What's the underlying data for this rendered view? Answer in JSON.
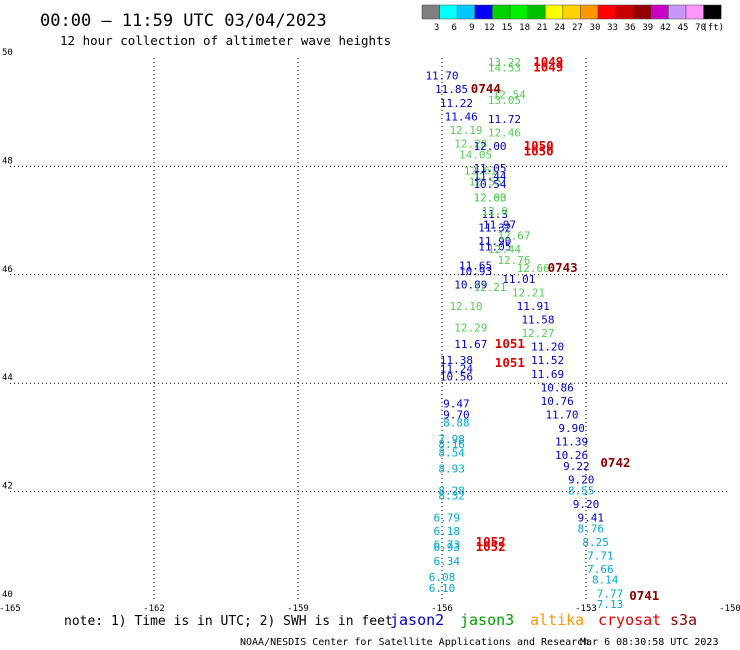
{
  "title": "00:00 – 11:59 UTC 03/04/2023",
  "subtitle": "12 hour collection of altimeter wave heights",
  "colorbar": {
    "colors": [
      "#7f7f7f",
      "#00ffff",
      "#00c8ff",
      "#0000ff",
      "#00d200",
      "#00f000",
      "#00c000",
      "#ffff00",
      "#ffd200",
      "#ff9600",
      "#ff0000",
      "#c80000",
      "#960000",
      "#c800c8",
      "#c896ff",
      "#ff96ff",
      "#000000"
    ],
    "labels": [
      "3",
      "6",
      "9",
      "12",
      "15",
      "18",
      "21",
      "24",
      "27",
      "30",
      "33",
      "36",
      "39",
      "42",
      "45",
      "70",
      "(ft)"
    ]
  },
  "axes": {
    "x_ticks": [
      "-165",
      "-162",
      "-159",
      "-156",
      "-153",
      "-150"
    ],
    "y_ticks": [
      "40",
      "42",
      "44",
      "46",
      "48",
      "50"
    ]
  },
  "note": "note: 1) Time is in UTC; 2) SWH is in feet",
  "satellites": [
    {
      "name": "jason2",
      "color": "#0000c8"
    },
    {
      "name": "jason3",
      "color": "#00a000"
    },
    {
      "name": "altika",
      "color": "#ff9900"
    },
    {
      "name": "cryosat",
      "color": "#e00000"
    },
    {
      "name": "s3a",
      "color": "#8b0000"
    }
  ],
  "credit": "NOAA/NESDIS Center for Satellite Applications and Research",
  "generated": "Mar  6 08:30:58 UTC 2023",
  "chart_data": {
    "type": "scatter",
    "x_range": [
      -165,
      -150
    ],
    "y_range": [
      40,
      50
    ],
    "grid": true,
    "observations": [
      {
        "lon": -156.0,
        "lat": 49.6,
        "v": "11.70",
        "color": "#0000c8"
      },
      {
        "lon": -155.8,
        "lat": 49.35,
        "v": "11.85",
        "color": "#0000c8"
      },
      {
        "lon": -155.7,
        "lat": 49.1,
        "v": "11.22",
        "color": "#0000c8"
      },
      {
        "lon": -155.6,
        "lat": 48.85,
        "v": "11.46",
        "color": "#0000c8"
      },
      {
        "lon": -155.5,
        "lat": 48.6,
        "v": "12.19",
        "color": "#55cc55"
      },
      {
        "lon": -155.4,
        "lat": 48.35,
        "v": "12.28",
        "color": "#55cc55"
      },
      {
        "lon": -155.3,
        "lat": 48.15,
        "v": "14.05",
        "color": "#55cc55"
      },
      {
        "lon": -155.2,
        "lat": 47.85,
        "v": "12.61",
        "color": "#55cc55"
      },
      {
        "lon": -155.1,
        "lat": 47.65,
        "v": "12.55",
        "color": "#55cc55"
      },
      {
        "lon": -155.0,
        "lat": 47.35,
        "v": "12.63",
        "color": "#55cc55"
      },
      {
        "lon": -154.9,
        "lat": 47.05,
        "v": "11.3",
        "color": "#0000c8"
      },
      {
        "lon": -154.9,
        "lat": 46.8,
        "v": "11.32",
        "color": "#0000c8"
      },
      {
        "lon": -154.9,
        "lat": 46.55,
        "v": "11.90",
        "color": "#0000c8"
      },
      {
        "lon": -154.9,
        "lat": 46.45,
        "v": "11.05",
        "color": "#0000c8"
      },
      {
        "lon": -155.3,
        "lat": 46.1,
        "v": "11.65",
        "color": "#0000c8"
      },
      {
        "lon": -155.3,
        "lat": 46.0,
        "v": "10.93",
        "color": "#0000c8"
      },
      {
        "lon": -155.4,
        "lat": 45.75,
        "v": "10.89",
        "color": "#0000c8"
      },
      {
        "lon": -155.5,
        "lat": 45.35,
        "v": "12.10",
        "color": "#55cc55"
      },
      {
        "lon": -155.4,
        "lat": 44.95,
        "v": "12.29",
        "color": "#55cc55"
      },
      {
        "lon": -155.4,
        "lat": 44.65,
        "v": "11.67",
        "color": "#0000c8"
      },
      {
        "lon": -155.7,
        "lat": 44.35,
        "v": "11.38",
        "color": "#0000c8"
      },
      {
        "lon": -155.7,
        "lat": 44.2,
        "v": "11.24",
        "color": "#0000c8"
      },
      {
        "lon": -155.7,
        "lat": 44.05,
        "v": "10.56",
        "color": "#0000c8"
      },
      {
        "lon": -155.7,
        "lat": 43.55,
        "v": "9.47",
        "color": "#0000c8"
      },
      {
        "lon": -155.7,
        "lat": 43.35,
        "v": "9.70",
        "color": "#0000c8"
      },
      {
        "lon": -155.7,
        "lat": 43.2,
        "v": "8.88",
        "color": "#00a8d0"
      },
      {
        "lon": -155.8,
        "lat": 42.9,
        "v": "7.98",
        "color": "#00a8d0"
      },
      {
        "lon": -155.8,
        "lat": 42.8,
        "v": "8.16",
        "color": "#00a8d0"
      },
      {
        "lon": -155.8,
        "lat": 42.65,
        "v": "8.54",
        "color": "#00a8d0"
      },
      {
        "lon": -155.8,
        "lat": 42.35,
        "v": "8.93",
        "color": "#00a8d0"
      },
      {
        "lon": -155.8,
        "lat": 41.95,
        "v": "8.28",
        "color": "#00a8d0"
      },
      {
        "lon": -155.8,
        "lat": 41.85,
        "v": "8.32",
        "color": "#00a8d0"
      },
      {
        "lon": -155.9,
        "lat": 41.45,
        "v": "6.79",
        "color": "#00a8d0"
      },
      {
        "lon": -155.9,
        "lat": 41.2,
        "v": "6.18",
        "color": "#00a8d0"
      },
      {
        "lon": -155.9,
        "lat": 40.95,
        "v": "6.73",
        "color": "#00a8d0"
      },
      {
        "lon": -155.9,
        "lat": 40.9,
        "v": "6.93",
        "color": "#00a8d0"
      },
      {
        "lon": -155.9,
        "lat": 40.65,
        "v": "6.34",
        "color": "#00a8d0"
      },
      {
        "lon": -156.0,
        "lat": 40.35,
        "v": "6.08",
        "color": "#00a8d0"
      },
      {
        "lon": -156.0,
        "lat": 40.15,
        "v": "6.10",
        "color": "#00a8d0"
      },
      {
        "lon": -154.7,
        "lat": 49.85,
        "v": "13.22",
        "color": "#55cc55"
      },
      {
        "lon": -154.7,
        "lat": 49.75,
        "v": "14.53",
        "color": "#55cc55"
      },
      {
        "lon": -154.6,
        "lat": 49.25,
        "v": "12.54",
        "color": "#55cc55"
      },
      {
        "lon": -154.7,
        "lat": 49.15,
        "v": "13.05",
        "color": "#55cc55"
      },
      {
        "lon": -154.7,
        "lat": 48.8,
        "v": "11.72",
        "color": "#0000c8"
      },
      {
        "lon": -154.7,
        "lat": 48.55,
        "v": "12.46",
        "color": "#55cc55"
      },
      {
        "lon": -155.0,
        "lat": 48.3,
        "v": "12.00",
        "color": "#0000c8"
      },
      {
        "lon": -155.0,
        "lat": 47.9,
        "v": "11.05",
        "color": "#0000c8"
      },
      {
        "lon": -155.0,
        "lat": 47.75,
        "v": "11.44",
        "color": "#0000c8"
      },
      {
        "lon": -155.0,
        "lat": 47.6,
        "v": "10.54",
        "color": "#0000c8"
      },
      {
        "lon": -155.0,
        "lat": 47.35,
        "v": "12.00",
        "color": "#55cc55"
      },
      {
        "lon": -154.9,
        "lat": 47.1,
        "v": "12.0",
        "color": "#55cc55"
      },
      {
        "lon": -154.8,
        "lat": 46.85,
        "v": "11.97",
        "color": "#0000c8"
      },
      {
        "lon": -154.5,
        "lat": 46.65,
        "v": "12.67",
        "color": "#55cc55"
      },
      {
        "lon": -154.7,
        "lat": 46.4,
        "v": "12.44",
        "color": "#55cc55"
      },
      {
        "lon": -154.5,
        "lat": 46.2,
        "v": "12.76",
        "color": "#55cc55"
      },
      {
        "lon": -154.1,
        "lat": 46.05,
        "v": "12.66",
        "color": "#55cc55"
      },
      {
        "lon": -154.4,
        "lat": 45.85,
        "v": "11.01",
        "color": "#0000c8"
      },
      {
        "lon": -155.0,
        "lat": 45.7,
        "v": "12.21",
        "color": "#55cc55"
      },
      {
        "lon": -154.2,
        "lat": 45.6,
        "v": "12.21",
        "color": "#55cc55"
      },
      {
        "lon": -154.1,
        "lat": 45.35,
        "v": "11.91",
        "color": "#0000c8"
      },
      {
        "lon": -154.0,
        "lat": 45.1,
        "v": "11.58",
        "color": "#0000c8"
      },
      {
        "lon": -154.0,
        "lat": 44.85,
        "v": "12.27",
        "color": "#55cc55"
      },
      {
        "lon": -153.8,
        "lat": 44.6,
        "v": "11.20",
        "color": "#0000c8"
      },
      {
        "lon": -153.8,
        "lat": 44.35,
        "v": "11.52",
        "color": "#0000c8"
      },
      {
        "lon": -153.8,
        "lat": 44.1,
        "v": "11.69",
        "color": "#0000c8"
      },
      {
        "lon": -153.6,
        "lat": 43.85,
        "v": "10.86",
        "color": "#0000c8"
      },
      {
        "lon": -153.6,
        "lat": 43.6,
        "v": "10.76",
        "color": "#0000c8"
      },
      {
        "lon": -153.5,
        "lat": 43.35,
        "v": "11.70",
        "color": "#0000c8"
      },
      {
        "lon": -153.3,
        "lat": 43.1,
        "v": "9.90",
        "color": "#0000c8"
      },
      {
        "lon": -153.3,
        "lat": 42.85,
        "v": "11.39",
        "color": "#0000c8"
      },
      {
        "lon": -153.3,
        "lat": 42.6,
        "v": "10.26",
        "color": "#0000c8"
      },
      {
        "lon": -153.2,
        "lat": 42.4,
        "v": "9.22",
        "color": "#0000c8"
      },
      {
        "lon": -153.1,
        "lat": 42.15,
        "v": "9.20",
        "color": "#0000c8"
      },
      {
        "lon": -153.1,
        "lat": 41.95,
        "v": "8.55",
        "color": "#00a8d0"
      },
      {
        "lon": -153.0,
        "lat": 41.7,
        "v": "9.20",
        "color": "#0000c8"
      },
      {
        "lon": -152.9,
        "lat": 41.45,
        "v": "9.41",
        "color": "#0000c8"
      },
      {
        "lon": -152.9,
        "lat": 41.25,
        "v": "8.76",
        "color": "#00a8d0"
      },
      {
        "lon": -152.8,
        "lat": 41.0,
        "v": "8.25",
        "color": "#00a8d0"
      },
      {
        "lon": -152.7,
        "lat": 40.75,
        "v": "7.71",
        "color": "#00a8d0"
      },
      {
        "lon": -152.7,
        "lat": 40.5,
        "v": "7.66",
        "color": "#00a8d0"
      },
      {
        "lon": -152.6,
        "lat": 40.3,
        "v": "8.14",
        "color": "#00a8d0"
      },
      {
        "lon": -152.5,
        "lat": 40.05,
        "v": "7.77",
        "color": "#00a8d0"
      },
      {
        "lon": -152.5,
        "lat": 39.85,
        "v": "7.13",
        "color": "#00a8d0"
      }
    ],
    "time_labels": [
      {
        "lon": -154.1,
        "lat": 49.85,
        "t": "1049",
        "color": "#e00000"
      },
      {
        "lon": -154.1,
        "lat": 49.75,
        "t": "1049",
        "color": "#e00000"
      },
      {
        "lon": -155.4,
        "lat": 49.35,
        "t": "0744",
        "color": "#8b0000"
      },
      {
        "lon": -154.3,
        "lat": 48.3,
        "t": "1050",
        "color": "#e00000"
      },
      {
        "lon": -154.3,
        "lat": 48.2,
        "t": "1050",
        "color": "#e00000"
      },
      {
        "lon": -153.8,
        "lat": 46.05,
        "t": "0743",
        "color": "#8b0000"
      },
      {
        "lon": -154.9,
        "lat": 44.65,
        "t": "1051",
        "color": "#e00000"
      },
      {
        "lon": -154.9,
        "lat": 44.3,
        "t": "1051",
        "color": "#e00000"
      },
      {
        "lon": -152.7,
        "lat": 42.45,
        "t": "0742",
        "color": "#8b0000"
      },
      {
        "lon": -155.3,
        "lat": 41.0,
        "t": "1052",
        "color": "#e00000"
      },
      {
        "lon": -155.3,
        "lat": 40.9,
        "t": "1052",
        "color": "#e00000"
      },
      {
        "lon": -152.1,
        "lat": 40.0,
        "t": "0741",
        "color": "#8b0000"
      }
    ]
  }
}
